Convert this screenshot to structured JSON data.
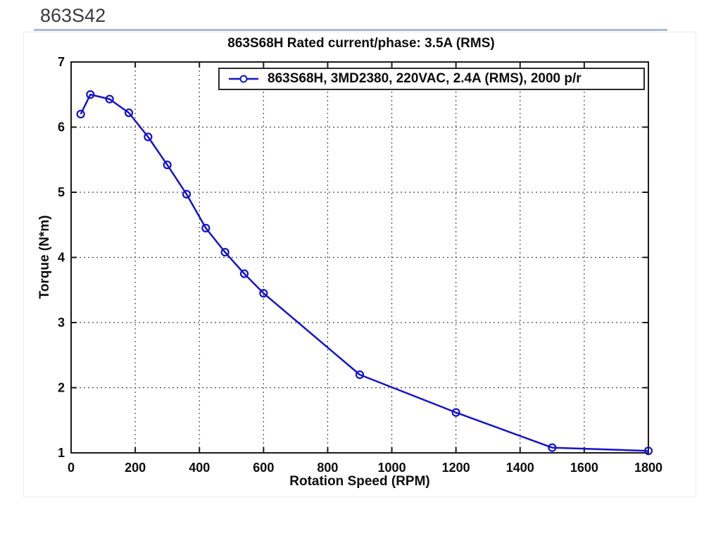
{
  "page": {
    "header": "863S42",
    "accent_rule_color": "#a9bdd9"
  },
  "chart_data": {
    "type": "line",
    "title": "863S68H Rated current/phase: 3.5A (RMS)",
    "xlabel": "Rotation Speed (RPM)",
    "ylabel": "Torque (N*m)",
    "xlim": [
      0,
      1800
    ],
    "ylim": [
      1,
      7
    ],
    "xticks": [
      0,
      200,
      400,
      600,
      800,
      1000,
      1200,
      1400,
      1600,
      1800
    ],
    "yticks": [
      1,
      2,
      3,
      4,
      5,
      6,
      7
    ],
    "grid": true,
    "grid_style": "dotted",
    "legend_position": "top-inside",
    "line_color": "#1414cc",
    "axis_color": "#1a1a1a",
    "marker": "open-circle",
    "series": [
      {
        "name": "863S68H, 3MD2380, 220VAC, 2.4A (RMS), 2000 p/r",
        "x": [
          30,
          60,
          120,
          180,
          240,
          300,
          360,
          420,
          480,
          540,
          600,
          900,
          1200,
          1500,
          1800
        ],
        "y": [
          6.2,
          6.5,
          6.43,
          6.22,
          5.85,
          5.42,
          4.97,
          4.45,
          4.08,
          3.75,
          3.45,
          2.2,
          1.62,
          1.08,
          1.03
        ]
      }
    ]
  }
}
